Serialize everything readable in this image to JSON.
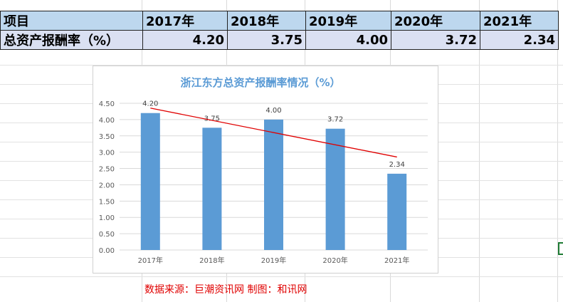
{
  "table": {
    "header": [
      "项目",
      "2017年",
      "2018年",
      "2019年",
      "2020年",
      "2021年"
    ],
    "row": [
      "总资产报酬率（%）",
      "4.20",
      "3.75",
      "4.00",
      "3.72",
      "2.34"
    ]
  },
  "chart_data": {
    "type": "bar",
    "title": "浙江东方总资产报酬率情况（%）",
    "categories": [
      "2017年",
      "2018年",
      "2019年",
      "2020年",
      "2021年"
    ],
    "values": [
      4.2,
      3.75,
      4.0,
      3.72,
      2.34
    ],
    "data_labels": [
      "4.20",
      "3.75",
      "4.00",
      "3.72",
      "2.34"
    ],
    "yticks": [
      "0.00",
      "0.50",
      "1.00",
      "1.50",
      "2.00",
      "2.50",
      "3.00",
      "3.50",
      "4.00",
      "4.50"
    ],
    "ylim": [
      0,
      4.5
    ],
    "grid": true,
    "trendline": "linear",
    "colors": {
      "bar": "#5b9bd5",
      "trendline": "#e00000",
      "title": "#5b9bd5"
    }
  },
  "source": "数据来源：巨潮资讯网  制图：和讯网"
}
